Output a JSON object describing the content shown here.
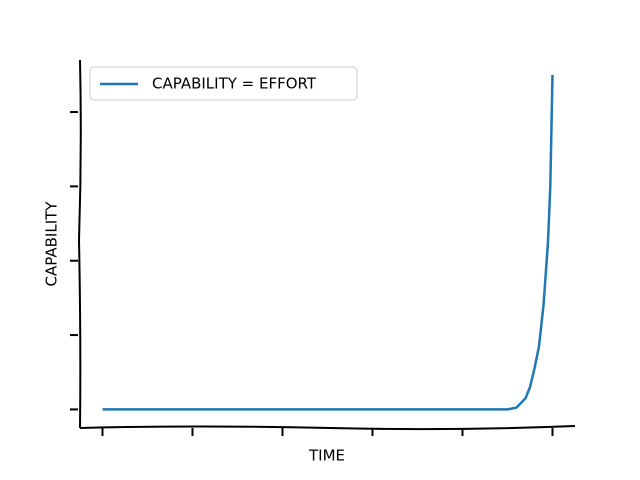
{
  "chart_data": {
    "type": "line",
    "x_label": "TIME",
    "y_label": "CAPABILITY",
    "x": [
      0,
      10,
      20,
      30,
      40,
      50,
      60,
      70,
      80,
      90,
      92,
      94,
      95,
      96,
      97,
      98,
      99,
      99.5,
      100
    ],
    "series": [
      {
        "name": "CAPABILITY = EFFORT",
        "color": "#1f77b4",
        "values": [
          0,
          0,
          0,
          0,
          0,
          0,
          0,
          0,
          0,
          0,
          0.5,
          3,
          6,
          11,
          17,
          28,
          45,
          60,
          90
        ]
      }
    ],
    "xlim": [
      -5,
      105
    ],
    "ylim": [
      -5,
      94
    ],
    "xticks": [
      0,
      20,
      40,
      60,
      80,
      100
    ],
    "yticks": [
      0,
      20,
      40,
      60,
      80
    ],
    "legend": "upper left"
  }
}
